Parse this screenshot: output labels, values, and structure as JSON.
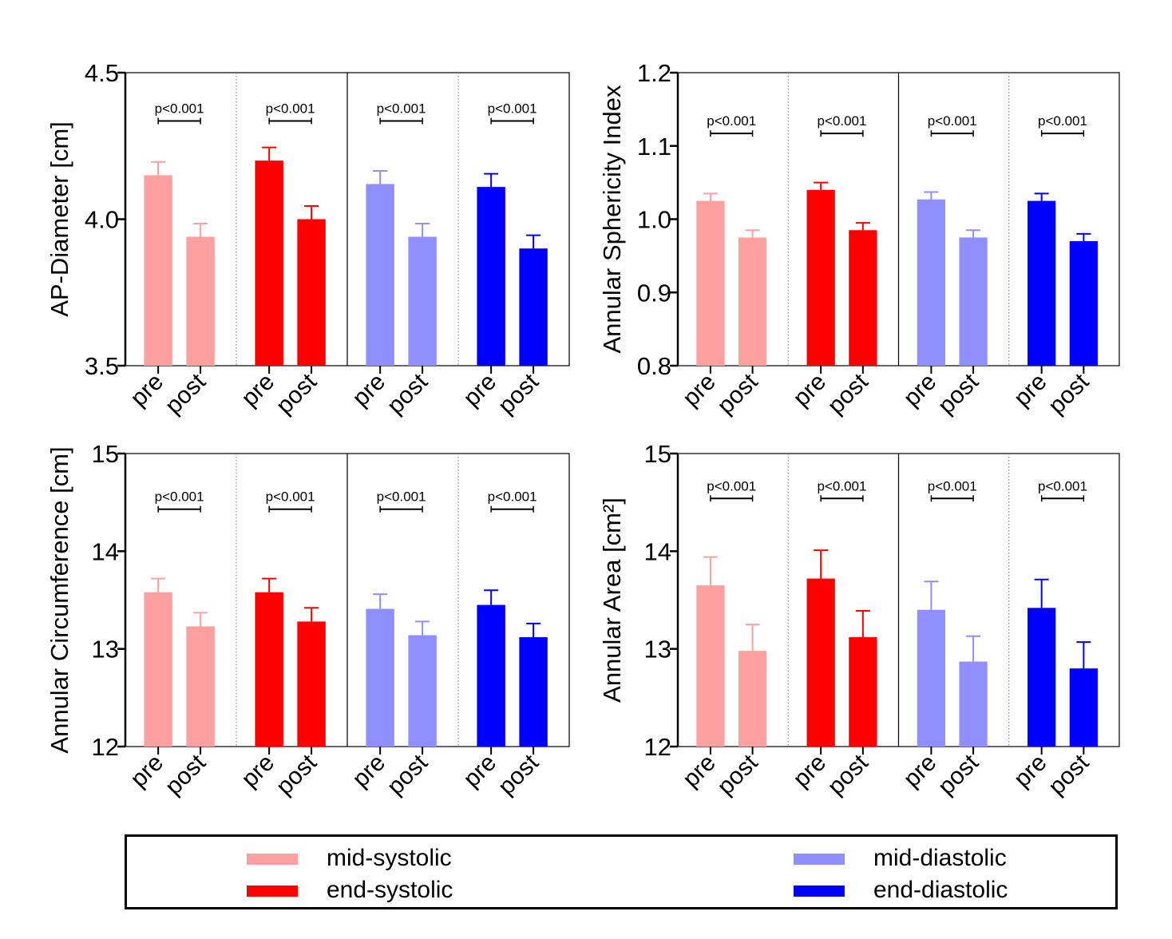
{
  "colors": {
    "mid-systolic": "#ffa0a0",
    "end-systolic": "#ff0000",
    "mid-diastolic": "#8f8fff",
    "end-diastolic": "#0000ff"
  },
  "legend": [
    {
      "label": "mid-systolic",
      "color": "#ffa0a0"
    },
    {
      "label": "end-systolic",
      "color": "#ff0000"
    },
    {
      "label": "mid-diastolic",
      "color": "#8f8fff"
    },
    {
      "label": "end-diastolic",
      "color": "#0000ff"
    }
  ],
  "chart_data": [
    {
      "type": "bar",
      "ylabel": "AP-Diameter [cm]",
      "ylim": [
        3.5,
        4.5
      ],
      "yticks": [
        "3.5",
        "4.0",
        "4.5"
      ],
      "categories": [
        "pre",
        "post"
      ],
      "groups": [
        "mid-systolic",
        "end-systolic",
        "mid-diastolic",
        "end-diastolic"
      ],
      "series": [
        {
          "name": "mid-systolic",
          "values": [
            4.15,
            3.94
          ],
          "errors": [
            0.045,
            0.045
          ]
        },
        {
          "name": "end-systolic",
          "values": [
            4.2,
            4.0
          ],
          "errors": [
            0.045,
            0.045
          ]
        },
        {
          "name": "mid-diastolic",
          "values": [
            4.12,
            3.94
          ],
          "errors": [
            0.045,
            0.045
          ]
        },
        {
          "name": "end-diastolic",
          "values": [
            4.11,
            3.9
          ],
          "errors": [
            0.045,
            0.045
          ]
        }
      ],
      "annotations": [
        "p<0.001",
        "p<0.001",
        "p<0.001",
        "p<0.001"
      ],
      "sig_y": 4.335
    },
    {
      "type": "bar",
      "ylabel": "Annular Sphericity Index",
      "ylim": [
        0.8,
        1.2
      ],
      "yticks": [
        "0.8",
        "0.9",
        "1.0",
        "1.1",
        "1.2"
      ],
      "categories": [
        "pre",
        "post"
      ],
      "groups": [
        "mid-systolic",
        "end-systolic",
        "mid-diastolic",
        "end-diastolic"
      ],
      "series": [
        {
          "name": "mid-systolic",
          "values": [
            1.025,
            0.975
          ],
          "errors": [
            0.01,
            0.01
          ]
        },
        {
          "name": "end-systolic",
          "values": [
            1.04,
            0.985
          ],
          "errors": [
            0.01,
            0.01
          ]
        },
        {
          "name": "mid-diastolic",
          "values": [
            1.027,
            0.975
          ],
          "errors": [
            0.01,
            0.01
          ]
        },
        {
          "name": "end-diastolic",
          "values": [
            1.025,
            0.97
          ],
          "errors": [
            0.01,
            0.01
          ]
        }
      ],
      "annotations": [
        "p<0.001",
        "p<0.001",
        "p<0.001",
        "p<0.001"
      ],
      "sig_y": 1.117
    },
    {
      "type": "bar",
      "ylabel": "Annular Circumference [cm]",
      "ylim": [
        12,
        15
      ],
      "yticks": [
        "12",
        "13",
        "14",
        "15"
      ],
      "categories": [
        "pre",
        "post"
      ],
      "groups": [
        "mid-systolic",
        "end-systolic",
        "mid-diastolic",
        "end-diastolic"
      ],
      "series": [
        {
          "name": "mid-systolic",
          "values": [
            13.58,
            13.23
          ],
          "errors": [
            0.14,
            0.14
          ]
        },
        {
          "name": "end-systolic",
          "values": [
            13.58,
            13.28
          ],
          "errors": [
            0.14,
            0.14
          ]
        },
        {
          "name": "mid-diastolic",
          "values": [
            13.41,
            13.14
          ],
          "errors": [
            0.15,
            0.14
          ]
        },
        {
          "name": "end-diastolic",
          "values": [
            13.45,
            13.12
          ],
          "errors": [
            0.15,
            0.14
          ]
        }
      ],
      "annotations": [
        "p<0.001",
        "p<0.001",
        "p<0.001",
        "p<0.001"
      ],
      "sig_y": 14.43
    },
    {
      "type": "bar",
      "ylabel": "Annular Area [cm²]",
      "ylim": [
        12,
        15
      ],
      "yticks": [
        "12",
        "13",
        "14",
        "15"
      ],
      "categories": [
        "pre",
        "post"
      ],
      "groups": [
        "mid-systolic",
        "end-systolic",
        "mid-diastolic",
        "end-diastolic"
      ],
      "series": [
        {
          "name": "mid-systolic",
          "values": [
            13.65,
            12.98
          ],
          "errors": [
            0.29,
            0.27
          ]
        },
        {
          "name": "end-systolic",
          "values": [
            13.72,
            13.12
          ],
          "errors": [
            0.29,
            0.27
          ]
        },
        {
          "name": "mid-diastolic",
          "values": [
            13.4,
            12.87
          ],
          "errors": [
            0.29,
            0.26
          ]
        },
        {
          "name": "end-diastolic",
          "values": [
            13.42,
            12.8
          ],
          "errors": [
            0.29,
            0.27
          ]
        }
      ],
      "annotations": [
        "p<0.001",
        "p<0.001",
        "p<0.001",
        "p<0.001"
      ],
      "sig_y": 14.54
    }
  ]
}
